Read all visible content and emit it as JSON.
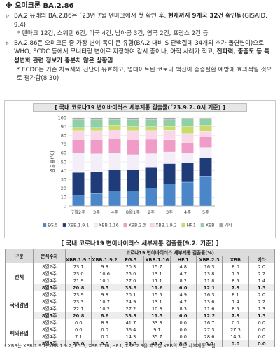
{
  "header": {
    "title": "※ 오미크론 BA.2.86"
  },
  "bullets": [
    {
      "segments": [
        {
          "text": "BA.2 유래의 BA.2.86은 ´23년 7월 덴마크에서 첫 확인 후, "
        },
        {
          "text": "현재까지 9개국 32건 확인됨",
          "bold": true
        },
        {
          "text": "(GISAID, 9.4)"
        }
      ],
      "note": "* 덴마크 12건, 스웨덴 6건, 미국 4건, 남아공 3건, 영국 2건, 프랑스 2건 등"
    },
    {
      "segments": [
        {
          "text": "BA.2.86은 오미크론 중 가장 변이 폭이 큰 유형(BA.2 대비 S 단백질에 34개의 추가 돌연변이)으로 WHO, ECDC 등에서 모니터링 변이로 지정하여 감시 중이나, 아직 사례가 적고, "
        },
        {
          "text": "전파력, 중증도 등 특성변화 관련 정보가 충분치 않은 상황임",
          "bold": true
        }
      ],
      "note": "* ECDC는 기존 치료제와 진단이 유효하고, 업데이트된 코로나 백신이 중증질환 예방에 효과적일 것으로 평가함(8.30)"
    }
  ],
  "chart_data": {
    "type": "bar",
    "stacked": true,
    "title": "[ 국내 코로나19 변이바이러스 세부계통 검출률(´23.9.2. 0시 기준) ]",
    "ylabel": "검출률(%)",
    "categories": [
      "7월2주",
      "3주",
      "4주",
      "8월1주",
      "2주",
      "3주",
      "4주",
      "5주"
    ],
    "series": [
      {
        "name": "EG.5",
        "color": "#4a86c8",
        "values": [
          12,
          14,
          17,
          17,
          20.3,
          25.0,
          27.0,
          33.8
        ]
      },
      {
        "name": "XBB.1.9.1",
        "color": "#1f3b78",
        "values": [
          26,
          25,
          24,
          24,
          23.1,
          23.0,
          21.9,
          20.8
        ]
      },
      {
        "name": "XBB.1.16",
        "color": "#f3eef8",
        "values": [
          22,
          20,
          19,
          17,
          15.7,
          13.1,
          11.1,
          11.6
        ]
      },
      {
        "name": "XBB.2.3",
        "color": "#ef9cc8",
        "values": [
          15,
          16,
          16,
          17,
          16.3,
          13.8,
          11.8,
          12.1
        ]
      },
      {
        "name": "XBB.1.9.2",
        "color": "#f9d6e8",
        "values": [
          10,
          10,
          10,
          10,
          9.8,
          10.6,
          10.1,
          6.5
        ]
      },
      {
        "name": "HF.1",
        "color": "#c9dc6a",
        "values": [
          4,
          4,
          5,
          5,
          4.8,
          4.7,
          8.2,
          6.0
        ]
      },
      {
        "name": "XBB",
        "color": "#8fd0a4",
        "values": [
          9,
          9,
          7,
          8,
          8.0,
          7.6,
          8.5,
          7.9
        ]
      },
      {
        "name": "기타",
        "color": "#a3a3a3",
        "values": [
          2,
          2,
          2,
          2,
          2.0,
          2.2,
          1.4,
          1.3
        ]
      }
    ],
    "ylim": [
      0,
      100
    ],
    "yticks": [
      0,
      10,
      20,
      30,
      40,
      50,
      60,
      70,
      80,
      90,
      100
    ],
    "grid": true,
    "legend": "bottom"
  },
  "table": {
    "title": "[ 국내 코로나19 변이바이러스 세부계통 검출률(9.2. 기준) ]",
    "headers": {
      "group": "구분",
      "week": "분석주차",
      "span": "코로나19 변이바이러스 세부계통 검출률(%)",
      "columns": [
        "XBB.1.9.1",
        "XBB.1.9.2",
        "EG.5",
        "XBB.1.16",
        "HF.1",
        "XBB.2.3",
        "XBB",
        "기타"
      ]
    },
    "groups": [
      {
        "name": "전체",
        "rows": [
          {
            "week": "8월2주",
            "cells": [
              "23.1",
              "9.8",
              "20.3",
              "15.7",
              "4.8",
              "16.3",
              "8.0",
              "2.0"
            ]
          },
          {
            "week": "8월3주",
            "cells": [
              "23.0",
              "10.6",
              "25.0",
              "13.1",
              "4.7",
              "13.8",
              "7.6",
              "2.2"
            ]
          },
          {
            "week": "8월4주",
            "cells": [
              "21.9",
              "10.1",
              "27.0",
              "11.1",
              "8.2",
              "11.8",
              "8.5",
              "1.4"
            ]
          },
          {
            "week": "8월5주",
            "cells": [
              "20.8",
              "6.5",
              "33.8",
              "11.6",
              "6.0",
              "12.1",
              "7.9",
              "1.3"
            ]
          }
        ]
      },
      {
        "name": "국내감염",
        "rows": [
          {
            "week": "8월2주",
            "cells": [
              "23.9",
              "9.8",
              "20.1",
              "15.5",
              "4.9",
              "16.3",
              "8.1",
              "2.0"
            ]
          },
          {
            "week": "8월3주",
            "cells": [
              "23.3",
              "10.7",
              "24.9",
              "13.1",
              "4.7",
              "13.6",
              "7.4",
              "2.2"
            ]
          },
          {
            "week": "8월4주",
            "cells": [
              "22.1",
              "10.2",
              "27.2",
              "10.8",
              "8.3",
              "11.6",
              "8.5",
              "1.3"
            ]
          },
          {
            "week": "8월5주",
            "cells": [
              "20.8",
              "6.6",
              "33.9",
              "11.3",
              "6.0",
              "12.2",
              "7.9",
              "1.3"
            ]
          }
        ]
      },
      {
        "name": "해외유입",
        "rows": [
          {
            "week": "8월2주",
            "cells": [
              "0.0",
              "8.3",
              "41.7",
              "33.3",
              "0.0",
              "16.7",
              "0.0",
              "0.0"
            ]
          },
          {
            "week": "8월3주",
            "cells": [
              "0.0",
              "0.0",
              "36.4",
              "9.1",
              "0.0",
              "27.3",
              "27.3",
              "0.0"
            ]
          },
          {
            "week": "8월4주",
            "cells": [
              "7.1",
              "0.0",
              "14.3",
              "35.7",
              "0.0",
              "28.6",
              "14.3",
              "0.0"
            ]
          },
          {
            "week": "8월5주",
            "cells": [
              "25.0",
              "0.0",
              "25.0",
              "41.7",
              "8.3",
              "0.0",
              "0.0",
              "0.0"
            ]
          }
        ]
      }
    ],
    "footnote": "* XBB는 XBB.1.9.1, XBB.1.9.2, EG.5, XBB.1.16, HF.1, XBB.2.3을 제외한 XBB의 모든 세부계통 포함"
  }
}
